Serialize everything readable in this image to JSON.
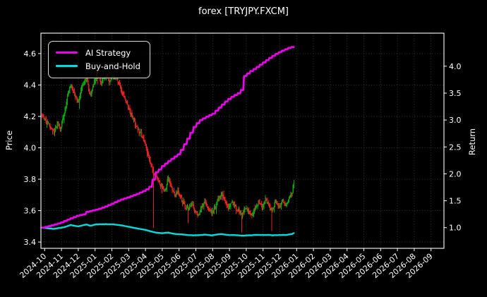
{
  "title": "forex [TRYJPY.FXCM]",
  "legend": {
    "items": [
      {
        "label": "AI Strategy",
        "color": "#ee00ee"
      },
      {
        "label": "Buy-and-Hold",
        "color": "#00dcdc"
      }
    ]
  },
  "axes": {
    "left_label": "Price",
    "right_label": "Return",
    "x_ticks": [
      "2024-10",
      "2024-11",
      "2024-12",
      "2025-01",
      "2025-02",
      "2025-03",
      "2025-04",
      "2025-05",
      "2025-06",
      "2025-07",
      "2025-08",
      "2025-09",
      "2025-10",
      "2025-11",
      "2025-12",
      "2026-01",
      "2026-02",
      "2026-03",
      "2026-04",
      "2026-05",
      "2026-06",
      "2026-07",
      "2026-08",
      "2026-09"
    ],
    "left_ticks": [
      "3.4",
      "3.6",
      "3.8",
      "4.0",
      "4.2",
      "4.4",
      "4.6"
    ],
    "right_ticks": [
      "1.0",
      "1.5",
      "2.0",
      "2.5",
      "3.0",
      "3.5",
      "4.0"
    ]
  },
  "colors": {
    "background": "#000000",
    "text": "#ffffff",
    "spine": "#ffffff",
    "grid": "#3f3f3f",
    "candle_up": "#0da30d",
    "candle_down": "#e02222",
    "ai_strategy": "#ee00ee",
    "buy_and_hold": "#00dcdc"
  },
  "chart_data": {
    "type": "candlestick+line",
    "title": "forex [TRYJPY.FXCM]",
    "x_unit": "months since 2024-10 (tick index on x axis)",
    "price_axis": {
      "label": "Price",
      "ticks": [
        3.4,
        3.6,
        3.8,
        4.0,
        4.2,
        4.4,
        4.6
      ],
      "ylim": [
        3.36,
        4.73
      ]
    },
    "return_axis": {
      "label": "Return",
      "ticks": [
        1.0,
        1.5,
        2.0,
        2.5,
        3.0,
        3.5,
        4.0
      ],
      "ylim": [
        0.616,
        4.614
      ]
    },
    "grid": true,
    "legend_position": "upper-left",
    "data_end_label": "2025-12 (late)",
    "candles": {
      "count": 320,
      "noise_seed": 11,
      "noise_amp": 0.02,
      "price_path": [
        [
          -0.15,
          4.2
        ],
        [
          0.1,
          4.17
        ],
        [
          0.35,
          4.13
        ],
        [
          0.55,
          4.1
        ],
        [
          0.75,
          4.16
        ],
        [
          0.95,
          4.12
        ],
        [
          1.15,
          4.22
        ],
        [
          1.35,
          4.32
        ],
        [
          1.55,
          4.4
        ],
        [
          1.75,
          4.35
        ],
        [
          2.0,
          4.29
        ],
        [
          2.25,
          4.4
        ],
        [
          2.5,
          4.45
        ],
        [
          2.7,
          4.33
        ],
        [
          2.9,
          4.4
        ],
        [
          3.1,
          4.46
        ],
        [
          3.35,
          4.42
        ],
        [
          3.6,
          4.46
        ],
        [
          3.85,
          4.43
        ],
        [
          4.1,
          4.45
        ],
        [
          4.35,
          4.43
        ],
        [
          4.6,
          4.36
        ],
        [
          4.8,
          4.3
        ],
        [
          5.0,
          4.26
        ],
        [
          5.2,
          4.2
        ],
        [
          5.45,
          4.14
        ],
        [
          5.7,
          4.1
        ],
        [
          5.95,
          4.03
        ],
        [
          6.15,
          3.96
        ],
        [
          6.35,
          3.88
        ],
        [
          6.55,
          3.83
        ],
        [
          6.75,
          3.8
        ],
        [
          6.95,
          3.76
        ],
        [
          7.15,
          3.72
        ],
        [
          7.35,
          3.81
        ],
        [
          7.55,
          3.74
        ],
        [
          7.75,
          3.7
        ],
        [
          7.95,
          3.73
        ],
        [
          8.15,
          3.67
        ],
        [
          8.35,
          3.63
        ],
        [
          8.55,
          3.61
        ],
        [
          8.75,
          3.65
        ],
        [
          8.95,
          3.6
        ],
        [
          9.15,
          3.57
        ],
        [
          9.35,
          3.62
        ],
        [
          9.55,
          3.66
        ],
        [
          9.75,
          3.62
        ],
        [
          9.95,
          3.59
        ],
        [
          10.15,
          3.62
        ],
        [
          10.35,
          3.68
        ],
        [
          10.55,
          3.7
        ],
        [
          10.75,
          3.65
        ],
        [
          10.95,
          3.61
        ],
        [
          11.15,
          3.66
        ],
        [
          11.35,
          3.62
        ],
        [
          11.55,
          3.59
        ],
        [
          11.75,
          3.57
        ],
        [
          11.95,
          3.62
        ],
        [
          12.15,
          3.6
        ],
        [
          12.35,
          3.57
        ],
        [
          12.55,
          3.62
        ],
        [
          12.75,
          3.66
        ],
        [
          12.95,
          3.62
        ],
        [
          13.15,
          3.67
        ],
        [
          13.35,
          3.63
        ],
        [
          13.55,
          3.6
        ],
        [
          13.75,
          3.65
        ],
        [
          13.95,
          3.62
        ],
        [
          14.15,
          3.66
        ],
        [
          14.35,
          3.63
        ],
        [
          14.55,
          3.68
        ],
        [
          14.7,
          3.7
        ],
        [
          14.83,
          3.77
        ]
      ],
      "low_spikes": [
        {
          "t": 6.45,
          "low": 3.49
        },
        {
          "t": 8.55,
          "low": 3.52
        },
        {
          "t": 11.75,
          "low": 3.46
        },
        {
          "t": 13.5,
          "low": 3.47
        }
      ]
    },
    "series": [
      {
        "name": "AI Strategy",
        "color": "#ee00ee",
        "axis": "return",
        "points": [
          [
            -0.15,
            1.0
          ],
          [
            0.5,
            1.05
          ],
          [
            1.0,
            1.1
          ],
          [
            1.5,
            1.17
          ],
          [
            2.0,
            1.23
          ],
          [
            2.35,
            1.25
          ],
          [
            2.45,
            1.29
          ],
          [
            3.0,
            1.33
          ],
          [
            3.5,
            1.38
          ],
          [
            4.0,
            1.45
          ],
          [
            4.5,
            1.52
          ],
          [
            5.0,
            1.57
          ],
          [
            5.5,
            1.63
          ],
          [
            6.0,
            1.7
          ],
          [
            6.35,
            1.79
          ],
          [
            6.5,
            2.0
          ],
          [
            6.8,
            2.08
          ],
          [
            7.0,
            2.15
          ],
          [
            7.5,
            2.27
          ],
          [
            8.0,
            2.38
          ],
          [
            8.5,
            2.66
          ],
          [
            8.9,
            2.89
          ],
          [
            9.2,
            2.99
          ],
          [
            9.6,
            3.06
          ],
          [
            10.0,
            3.12
          ],
          [
            10.4,
            3.24
          ],
          [
            10.8,
            3.36
          ],
          [
            11.2,
            3.45
          ],
          [
            11.6,
            3.51
          ],
          [
            11.72,
            3.58
          ],
          [
            11.8,
            3.8
          ],
          [
            12.2,
            3.9
          ],
          [
            12.6,
            3.98
          ],
          [
            13.0,
            4.07
          ],
          [
            13.4,
            4.16
          ],
          [
            13.8,
            4.24
          ],
          [
            14.2,
            4.3
          ],
          [
            14.5,
            4.34
          ],
          [
            14.83,
            4.37
          ]
        ]
      },
      {
        "name": "Buy-and-Hold",
        "color": "#00dcdc",
        "axis": "return",
        "points": [
          [
            -0.15,
            1.0
          ],
          [
            0.55,
            0.978
          ],
          [
            1.15,
            1.007
          ],
          [
            1.55,
            1.048
          ],
          [
            2.0,
            1.024
          ],
          [
            2.5,
            1.06
          ],
          [
            2.7,
            1.034
          ],
          [
            3.1,
            1.063
          ],
          [
            3.6,
            1.064
          ],
          [
            4.1,
            1.061
          ],
          [
            4.6,
            1.041
          ],
          [
            5.0,
            1.017
          ],
          [
            5.45,
            0.988
          ],
          [
            5.95,
            0.962
          ],
          [
            6.35,
            0.928
          ],
          [
            6.55,
            0.913
          ],
          [
            6.95,
            0.897
          ],
          [
            7.35,
            0.908
          ],
          [
            7.75,
            0.883
          ],
          [
            8.15,
            0.876
          ],
          [
            8.55,
            0.862
          ],
          [
            8.95,
            0.858
          ],
          [
            9.35,
            0.864
          ],
          [
            9.55,
            0.872
          ],
          [
            9.95,
            0.857
          ],
          [
            10.35,
            0.876
          ],
          [
            10.55,
            0.882
          ],
          [
            10.95,
            0.862
          ],
          [
            11.35,
            0.863
          ],
          [
            11.75,
            0.85
          ],
          [
            12.15,
            0.858
          ],
          [
            12.55,
            0.864
          ],
          [
            12.95,
            0.863
          ],
          [
            13.35,
            0.866
          ],
          [
            13.55,
            0.858
          ],
          [
            13.95,
            0.863
          ],
          [
            14.35,
            0.865
          ],
          [
            14.7,
            0.88
          ],
          [
            14.83,
            0.898
          ]
        ]
      }
    ]
  }
}
